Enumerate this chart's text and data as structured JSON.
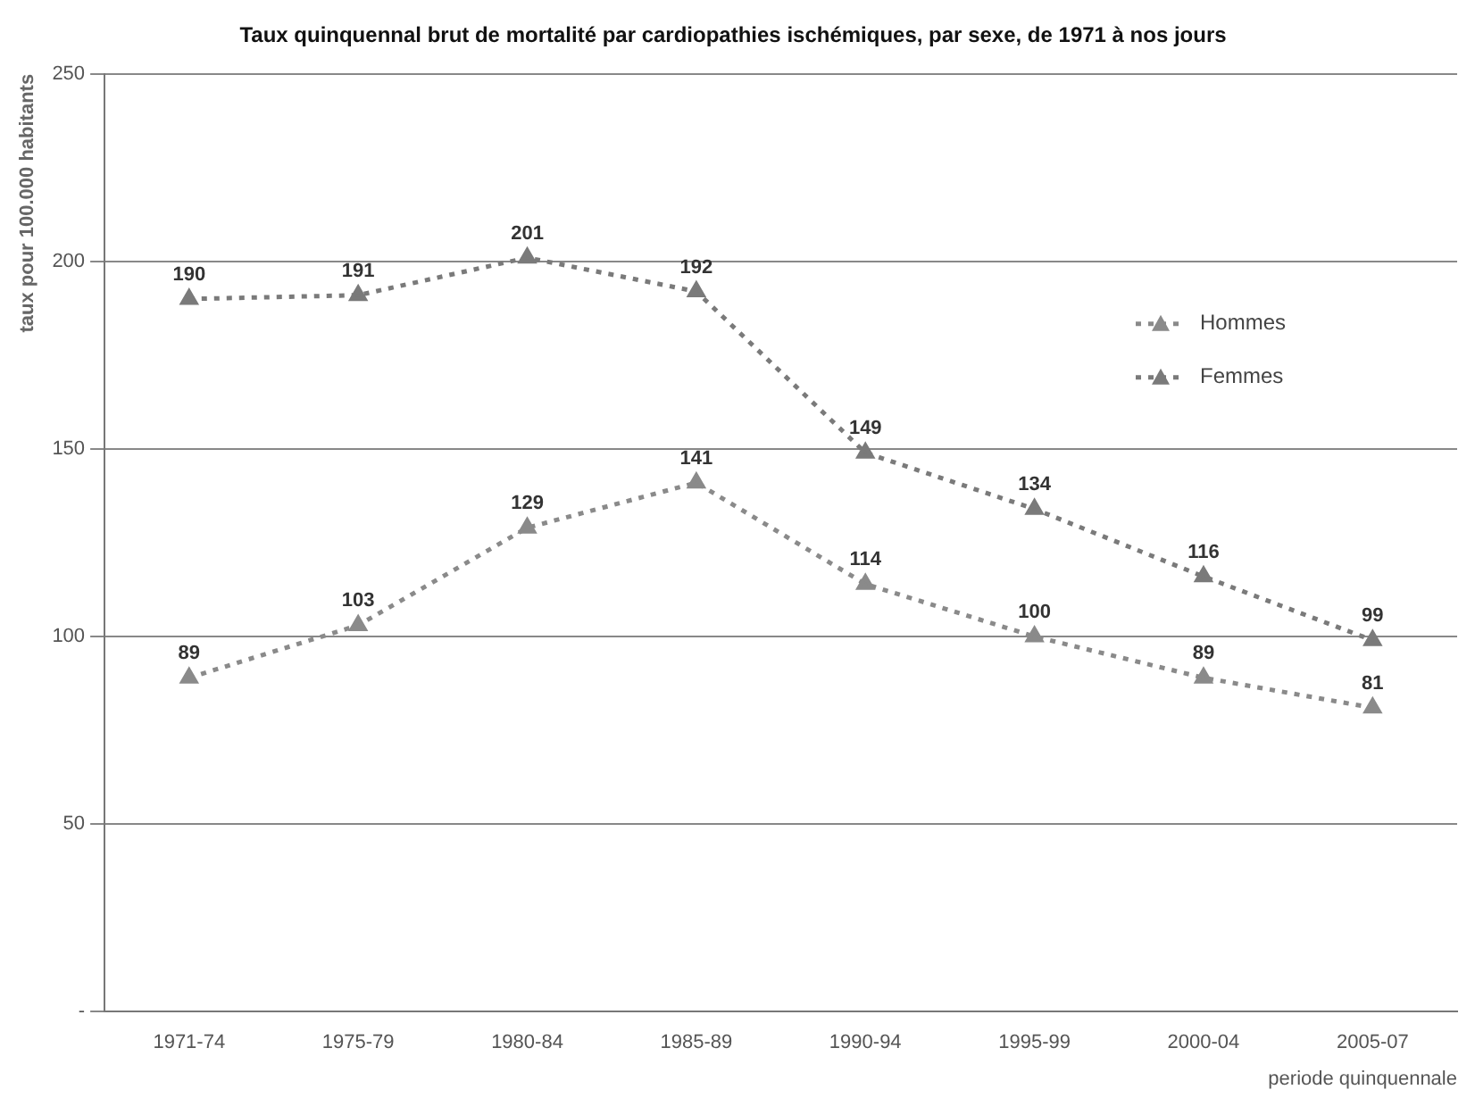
{
  "chart_data": {
    "type": "line",
    "title": "Taux quinquennal brut de mortalité par cardiopathies ischémiques, par sexe, de 1971 à nos jours",
    "xlabel": "periode quinquennale",
    "ylabel": "taux pour 100.000 habitants",
    "categories": [
      "1971-74",
      "1975-79",
      "1980-84",
      "1985-89",
      "1990-94",
      "1995-99",
      "2000-04",
      "2005-07"
    ],
    "series": [
      {
        "name": "Hommes",
        "color": "#8a8a8a",
        "values": [
          89,
          103,
          129,
          141,
          114,
          100,
          89,
          81
        ]
      },
      {
        "name": "Femmes",
        "color": "#7a7a7a",
        "values": [
          190,
          191,
          201,
          192,
          149,
          134,
          116,
          99
        ]
      }
    ],
    "ylim": [
      0,
      250
    ],
    "yticks": [
      {
        "value": 0,
        "label": "-"
      },
      50,
      100,
      150,
      200,
      250
    ],
    "grid": "y",
    "legend": "top right",
    "marker": "triangle",
    "line_style": "dotted",
    "data_labels": true
  }
}
